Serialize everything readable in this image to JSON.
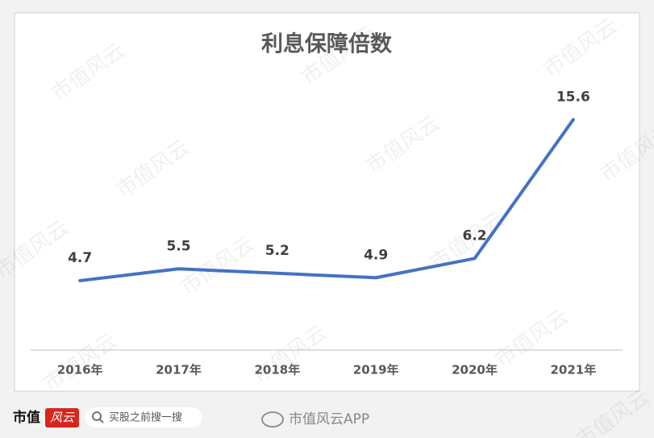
{
  "chart_data": {
    "type": "line",
    "title": "利息保障倍数",
    "categories": [
      "2016年",
      "2017年",
      "2018年",
      "2019年",
      "2020年",
      "2021年"
    ],
    "values": [
      4.7,
      5.5,
      5.2,
      4.9,
      6.2,
      15.6
    ],
    "color": "#4472c4",
    "ylim": [
      0,
      16.6
    ]
  },
  "watermark": "市值风云",
  "footer": {
    "logo_left": "市值",
    "logo_right": "风云",
    "search": "买股之前搜一搜",
    "account": "市值风云APP"
  }
}
